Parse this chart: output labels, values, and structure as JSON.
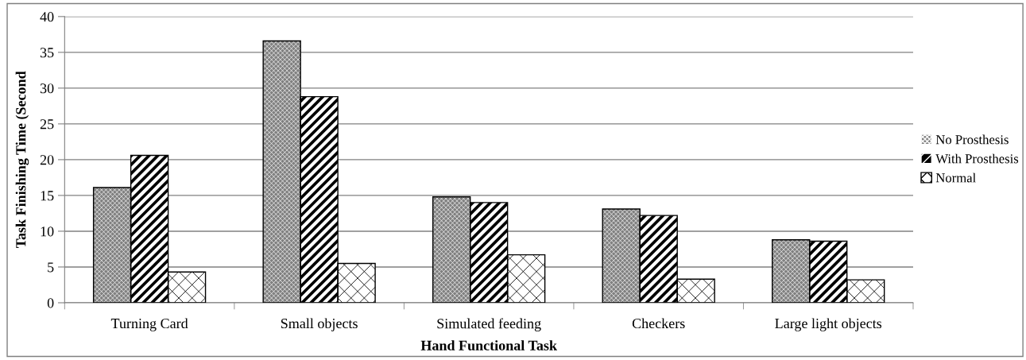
{
  "chart_data": {
    "type": "bar",
    "xlabel": "Hand Functional Task",
    "ylabel": "Task Finishing Time (Second",
    "categories": [
      "Turning Card",
      "Small objects",
      "Simulated feeding",
      "Checkers",
      "Large light objects"
    ],
    "series": [
      {
        "name": "No Prosthesis",
        "color": "#808080",
        "values": [
          16.1,
          36.6,
          14.8,
          13.1,
          8.8
        ]
      },
      {
        "name": "With Prosthesis",
        "color": "#000000",
        "values": [
          20.6,
          28.8,
          14.0,
          12.2,
          8.6
        ]
      },
      {
        "name": "Normal",
        "color": "#ffffff",
        "values": [
          4.3,
          5.5,
          6.7,
          3.3,
          3.2
        ]
      }
    ],
    "ylim": [
      0,
      40
    ],
    "yticks": [
      0,
      5,
      10,
      15,
      20,
      25,
      30,
      35,
      40
    ],
    "grid": "y",
    "legend": "right"
  }
}
